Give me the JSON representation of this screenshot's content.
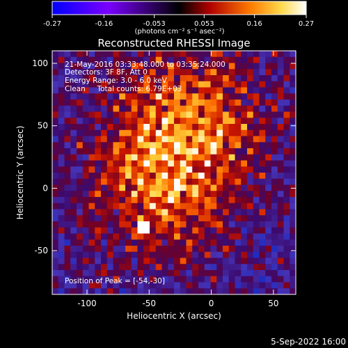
{
  "chart_data": {
    "type": "heatmap",
    "title": "Reconstructed RHESSI Image",
    "xlabel": "Heliocentric X (arcsec)",
    "ylabel": "Heliocentric Y (arcsec)",
    "xlim": [
      -128,
      68
    ],
    "ylim": [
      -85,
      110
    ],
    "x_ticks": [
      "-100",
      "-50",
      "0",
      "50"
    ],
    "x_tick_values": [
      -100,
      -50,
      0,
      50
    ],
    "y_ticks": [
      "-50",
      "0",
      "50",
      "100"
    ],
    "y_tick_values": [
      -50,
      0,
      50,
      100
    ],
    "colorbar": {
      "min": -0.27,
      "max": 0.27,
      "tick_labels": [
        "-0.27",
        "-0.16",
        "-0.053",
        "0.053",
        "0.16",
        "0.27"
      ],
      "tick_values": [
        -0.27,
        -0.16,
        -0.053,
        0.053,
        0.16,
        0.27
      ],
      "units_label": "(photons cm⁻² s⁻¹ asec⁻²)",
      "colors": [
        "#0000ff",
        "#7a00ff",
        "#000000",
        "#b00000",
        "#ff7a00",
        "#ffd84a",
        "#ffffff"
      ]
    },
    "annotations": {
      "time": "21-May-2016 03:33:48.000 to 03:35:24.000",
      "detectors": "Detectors: 3F 8F, Att 0",
      "energy": "Energy Range: 3.0 - 6.0 keV",
      "method": "Clean     Total counts: 6.79E+03",
      "peak": "Position of Peak = [-54,-30]"
    },
    "peak_position": [
      -54,
      -30
    ],
    "footer_date": "5-Sep-2022 16:00"
  }
}
